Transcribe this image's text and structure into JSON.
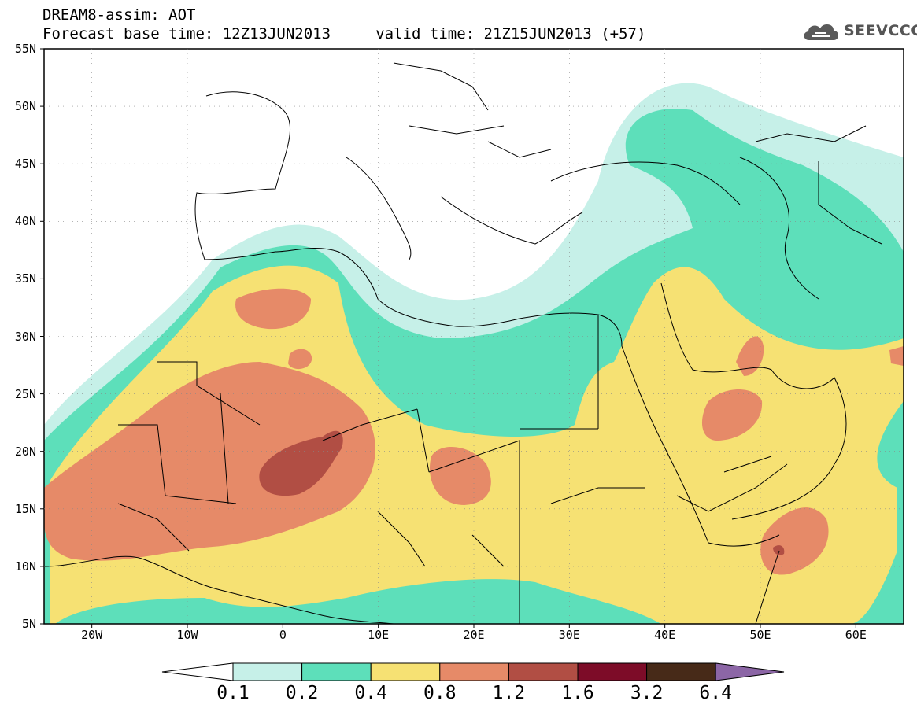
{
  "title": {
    "line1": "DREAM8-assim: AOT",
    "line2": "Forecast base time: 12Z13JUN2013     valid time: 21Z15JUN2013 (+57)"
  },
  "logo": {
    "text": "SEEVCCC",
    "icon": "cloud-icon"
  },
  "map": {
    "region": {
      "lon_range": [
        -25,
        65
      ],
      "lat_range": [
        5,
        55
      ]
    },
    "lat_ticks": [
      "55N",
      "50N",
      "45N",
      "40N",
      "35N",
      "30N",
      "25N",
      "20N",
      "15N",
      "10N",
      "5N"
    ],
    "lon_ticks": [
      "20W",
      "10W",
      "0",
      "10E",
      "20E",
      "30E",
      "40E",
      "50E",
      "60E"
    ],
    "land_color": "#ffffff",
    "border_color": "#000000"
  },
  "colorbar": {
    "labels": [
      "0.1",
      "0.2",
      "0.4",
      "0.8",
      "1.2",
      "1.6",
      "3.2",
      "6.4"
    ],
    "colors": [
      "#ffffff",
      "#c6f0e8",
      "#5ddfba",
      "#f6e173",
      "#e68a68",
      "#b14e44",
      "#7d0c28",
      "#472a18",
      "#8c66a6"
    ]
  }
}
